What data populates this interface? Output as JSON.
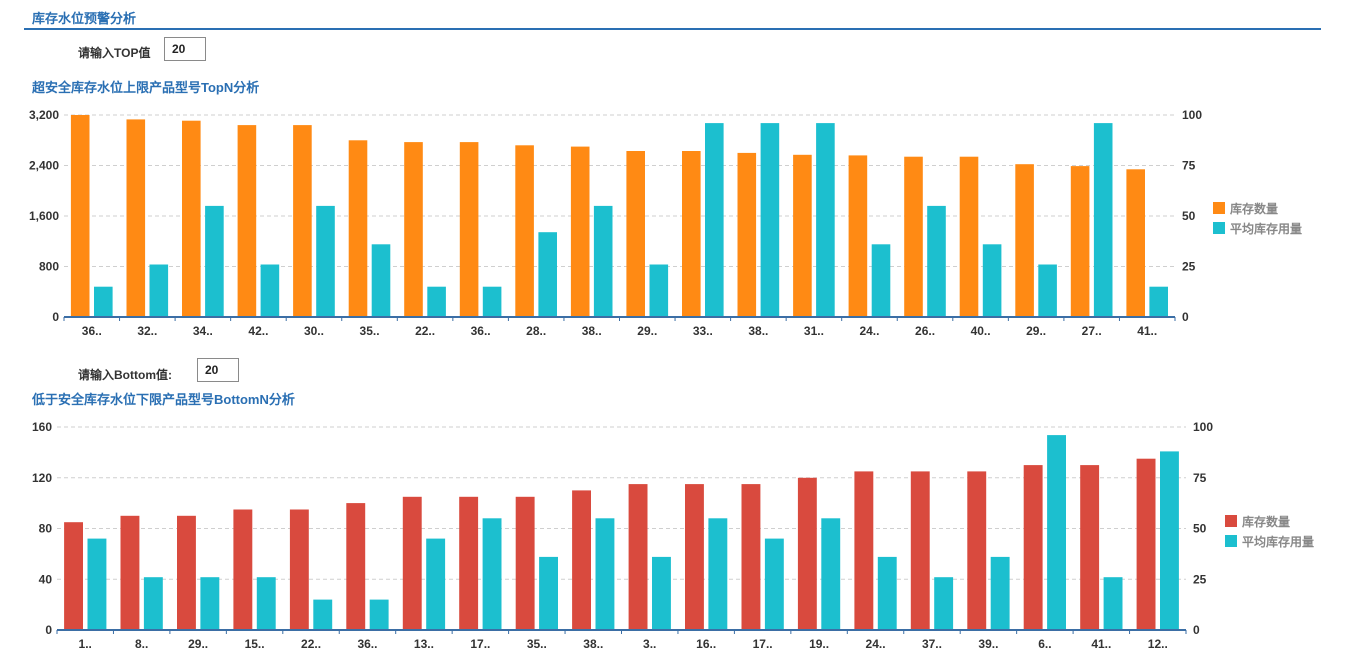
{
  "page": {
    "title": "库存水位预警分析"
  },
  "top_filter": {
    "label": "请输入TOP值",
    "value": "20"
  },
  "bottom_filter": {
    "label": "请输入Bottom值:",
    "value": "20"
  },
  "chart_data": [
    {
      "type": "bar",
      "title": "超安全库存水位上限产品型号TopN分析",
      "categories": [
        "36..",
        "32..",
        "34..",
        "42..",
        "30..",
        "35..",
        "22..",
        "36..",
        "28..",
        "38..",
        "29..",
        "33..",
        "38..",
        "31..",
        "24..",
        "26..",
        "40..",
        "29..",
        "27..",
        "41.."
      ],
      "series": [
        {
          "name": "库存数量",
          "axis": "left",
          "color": "#ff8a14",
          "values": [
            3200,
            3130,
            3110,
            3040,
            3040,
            2800,
            2770,
            2770,
            2720,
            2700,
            2630,
            2630,
            2600,
            2570,
            2560,
            2540,
            2540,
            2420,
            2390,
            2340
          ]
        },
        {
          "name": "平均库存用量",
          "axis": "right",
          "color": "#1cbfcf",
          "values": [
            15,
            26,
            55,
            26,
            55,
            36,
            15,
            15,
            42,
            55,
            26,
            96,
            96,
            96,
            36,
            55,
            36,
            26,
            96,
            15
          ]
        }
      ],
      "ylim_left": [
        0,
        3200
      ],
      "yticks_left": [
        0,
        800,
        1600,
        2400,
        3200
      ],
      "ytick_labels_left": [
        "0",
        "800",
        "1,600",
        "2,400",
        "3,200"
      ],
      "ylim_right": [
        0,
        100
      ],
      "yticks_right": [
        0,
        25,
        50,
        75,
        100
      ],
      "ytick_labels_right": [
        "0",
        "25",
        "50",
        "75",
        "100"
      ],
      "grid": true,
      "legend_position": "right"
    },
    {
      "type": "bar",
      "title": "低于安全库存水位下限产品型号BottomN分析",
      "categories": [
        "1..",
        "8..",
        "29..",
        "15..",
        "22..",
        "36..",
        "13..",
        "17..",
        "35..",
        "38..",
        "3..",
        "16..",
        "17..",
        "19..",
        "24..",
        "37..",
        "39..",
        "6..",
        "41..",
        "12.."
      ],
      "series": [
        {
          "name": "库存数量",
          "axis": "left",
          "color": "#d94a3e",
          "values": [
            85,
            90,
            90,
            95,
            95,
            100,
            105,
            105,
            105,
            110,
            115,
            115,
            115,
            120,
            125,
            125,
            125,
            130,
            130,
            135
          ]
        },
        {
          "name": "平均库存用量",
          "axis": "right",
          "color": "#1cbfcf",
          "values": [
            45,
            26,
            26,
            26,
            15,
            15,
            45,
            55,
            36,
            55,
            36,
            55,
            45,
            55,
            36,
            26,
            36,
            96,
            26,
            88
          ]
        }
      ],
      "ylim_left": [
        0,
        160
      ],
      "yticks_left": [
        0,
        40,
        80,
        120,
        160
      ],
      "ytick_labels_left": [
        "0",
        "40",
        "80",
        "120",
        "160"
      ],
      "ylim_right": [
        0,
        100
      ],
      "yticks_right": [
        0,
        25,
        50,
        75,
        100
      ],
      "ytick_labels_right": [
        "0",
        "25",
        "50",
        "75",
        "100"
      ],
      "grid": true,
      "legend_position": "right"
    }
  ]
}
